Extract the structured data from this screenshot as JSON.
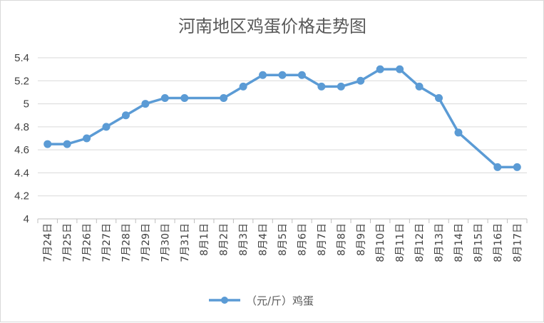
{
  "chart_data": {
    "type": "line",
    "title": "河南地区鸡蛋价格走势图",
    "categories": [
      "7月24日",
      "7月25日",
      "7月26日",
      "7月27日",
      "7月28日",
      "7月29日",
      "7月30日",
      "7月31日",
      "8月1日",
      "8月2日",
      "8月3日",
      "8月4日",
      "8月5日",
      "8月6日",
      "8月7日",
      "8月8日",
      "8月9日",
      "8月10日",
      "8月11日",
      "8月12日",
      "8月13日",
      "8月14日",
      "8月15日",
      "8月16日",
      "8月17日"
    ],
    "series": [
      {
        "name": "（元/斤）鸡蛋",
        "values": [
          4.65,
          4.65,
          4.7,
          4.8,
          4.9,
          5.0,
          5.05,
          5.05,
          null,
          5.05,
          5.15,
          5.25,
          5.25,
          5.25,
          5.15,
          5.15,
          5.2,
          5.3,
          5.3,
          5.15,
          5.05,
          4.75,
          null,
          4.45,
          4.45
        ],
        "color": "#5b9bd5"
      }
    ],
    "ylim": [
      4,
      5.4
    ],
    "yticks": [
      "4",
      "4.2",
      "4.4",
      "4.6",
      "4.8",
      "5",
      "5.2",
      "5.4"
    ],
    "grid": true,
    "legend_position": "bottom",
    "xlabel": "",
    "ylabel": ""
  }
}
